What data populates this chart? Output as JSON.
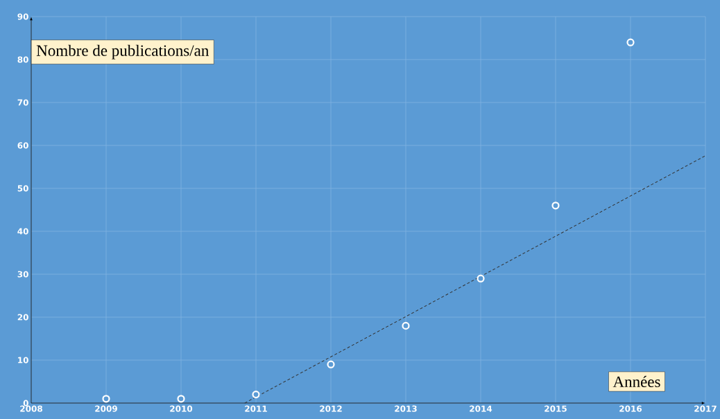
{
  "chart_data": {
    "type": "scatter",
    "xlabel": "Années",
    "ylabel": "Nombre de publications/an",
    "x": [
      2009,
      2010,
      2011,
      2012,
      2013,
      2014,
      2015,
      2016
    ],
    "series": [
      {
        "values": [
          1,
          1,
          2,
          9,
          18,
          29,
          46,
          84
        ],
        "color": "#ffffff",
        "marker": "circle"
      },
      {
        "type": "line",
        "x": [
          2010.85,
          2017
        ],
        "values": [
          0,
          57.6
        ],
        "color": "#333333",
        "line_style": "dashed",
        "marker": "none"
      }
    ],
    "xlim": [
      2008,
      2017
    ],
    "ylim": [
      0,
      90
    ],
    "xticks": [
      2008,
      2009,
      2010,
      2011,
      2012,
      2013,
      2014,
      2015,
      2016,
      2017
    ],
    "yticks": [
      0,
      10,
      20,
      30,
      40,
      50,
      60,
      70,
      80,
      90
    ],
    "grid": true
  }
}
